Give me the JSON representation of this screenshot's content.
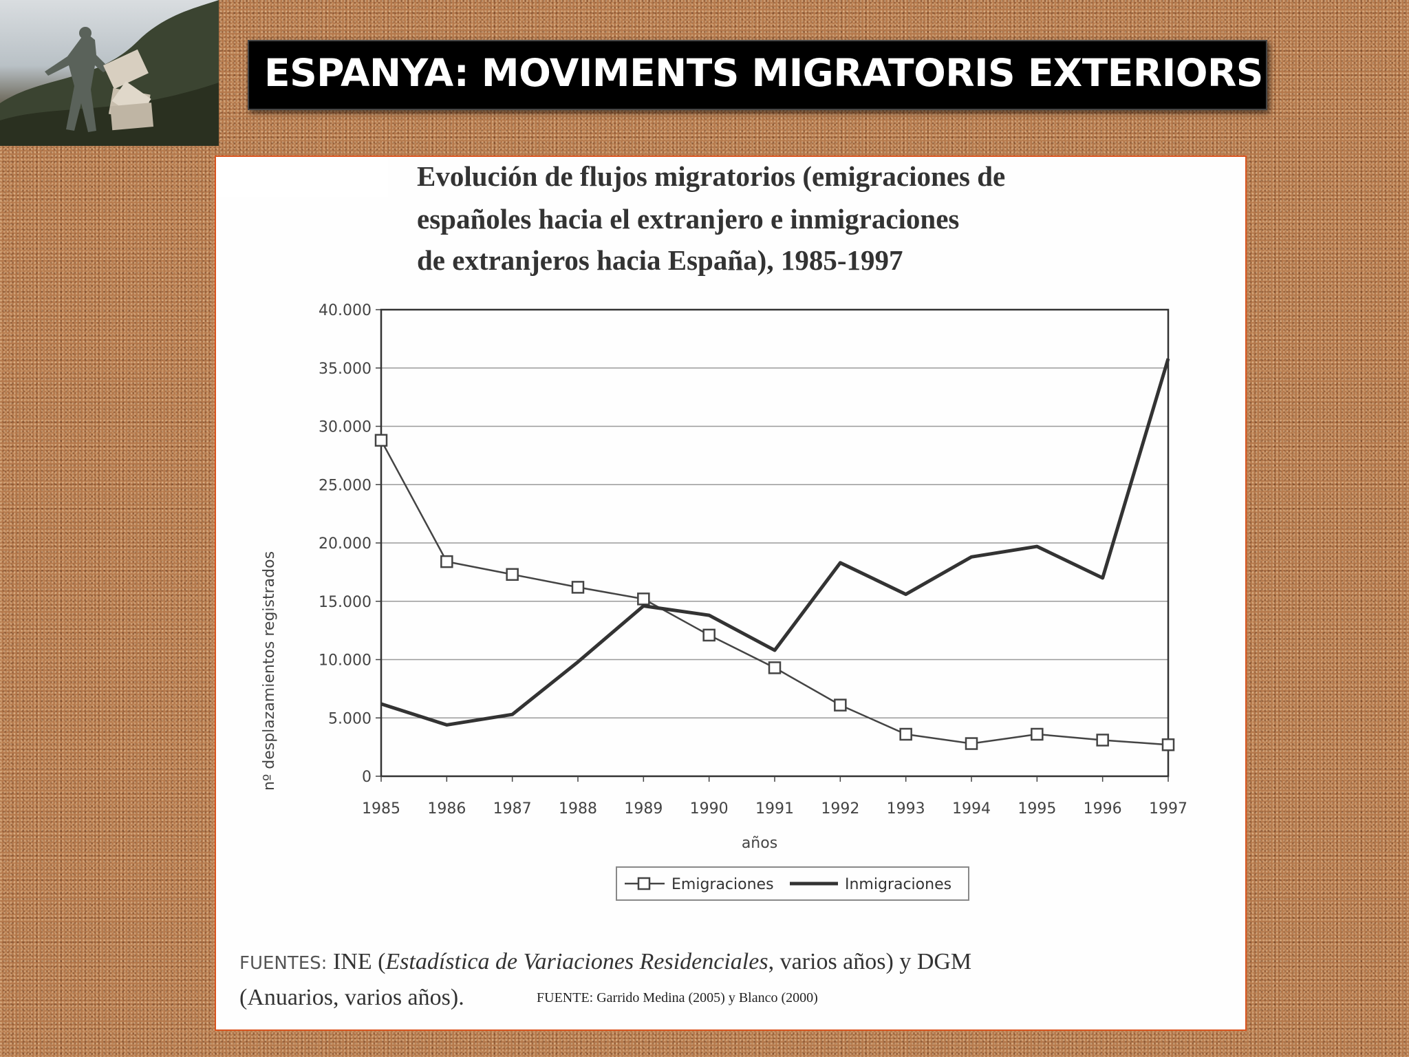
{
  "slide_title": "ESPANYA: MOVIMENTS MIGRATORIS EXTERIORS",
  "photo_icon": "sculpture-photo",
  "chart_data": {
    "type": "line",
    "title_lines": [
      "Evolución de flujos migratorios (emigraciones de",
      "españoles hacia el extranjero e inmigraciones",
      "de extranjeros hacia España), 1985-1997"
    ],
    "xlabel": "años",
    "ylabel": "nº desplazamientos registrados",
    "x": [
      "1985",
      "1986",
      "1987",
      "1988",
      "1989",
      "1990",
      "1991",
      "1992",
      "1993",
      "1994",
      "1995",
      "1996",
      "1997"
    ],
    "ylim": [
      0,
      40000
    ],
    "yticks": [
      0,
      5000,
      10000,
      15000,
      20000,
      25000,
      30000,
      35000,
      40000
    ],
    "ytick_labels": [
      "0",
      "5.000",
      "10.000",
      "15.000",
      "20.000",
      "25.000",
      "30.000",
      "35.000",
      "40.000"
    ],
    "grid": true,
    "legend_position": "bottom",
    "series": [
      {
        "name": "Emigraciones",
        "marker": "square",
        "color": "#444444",
        "values": [
          28800,
          18400,
          17300,
          16200,
          15200,
          12100,
          9300,
          6100,
          3600,
          2800,
          3600,
          3100,
          2700
        ]
      },
      {
        "name": "Inmigraciones",
        "marker": "none",
        "color": "#333333",
        "values": [
          6200,
          4400,
          5300,
          9800,
          14600,
          13800,
          10800,
          18300,
          15600,
          18800,
          19700,
          17000,
          35800
        ]
      }
    ]
  },
  "sources": {
    "label": "FUENTES:",
    "line1_a": " INE (",
    "line1_italic": "Estadística de Variaciones Residenciales",
    "line1_b": ", varios años) y DGM",
    "line2": "(Anuarios, varios años).",
    "line2_small": "FUENTE: Garrido Medina (2005) y Blanco (2000)"
  }
}
